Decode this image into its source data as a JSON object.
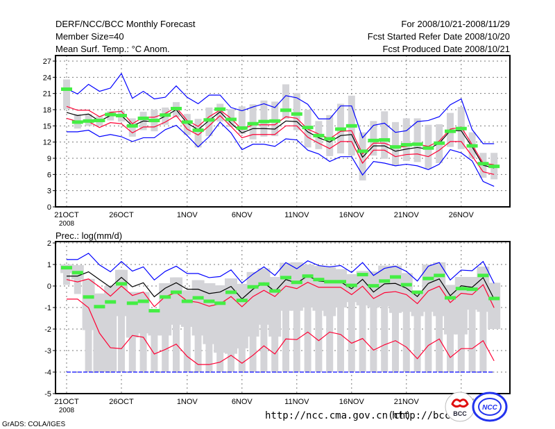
{
  "header": {
    "title": "DERF/NCC/BCC Monthly Forecast",
    "member_size": "Member Size=40",
    "variable": "Mean Surf. Temp.: °C Anom.",
    "period": "For 2008/10/21-2008/11/29",
    "started": "Fcst Started Refer Date 2008/10/20",
    "produced": "Fcst Produced Date 2008/10/21"
  },
  "footer": {
    "url_ncc": "http://ncc.cma.gov.cn(ch)",
    "url_bcc": "http://bcc.",
    "grads": "GrADS: COLA/IGES",
    "logo_bcc": "BCC",
    "logo_ncc": "NCC"
  },
  "colors": {
    "blue": "#0000ff",
    "red": "#ff0033",
    "black": "#000000",
    "green": "#44ee44",
    "bar": "#d4d4d8"
  },
  "chart_data": [
    {
      "type": "line",
      "title": "Mean Surf. Temp.",
      "ylim": [
        0,
        27
      ],
      "yticks": [
        "0",
        "3",
        "6",
        "9",
        "12",
        "15",
        "18",
        "21",
        "24",
        "27"
      ],
      "xticks": [
        {
          "day": 0,
          "label": "21OCT",
          "sub": "2008"
        },
        {
          "day": 5,
          "label": "26OCT"
        },
        {
          "day": 11,
          "label": "1NOV"
        },
        {
          "day": 16,
          "label": "6NOV"
        },
        {
          "day": 21,
          "label": "11NOV"
        },
        {
          "day": 26,
          "label": "16NOV"
        },
        {
          "day": 31,
          "label": "21NOV"
        },
        {
          "day": 36,
          "label": "26NOV"
        }
      ],
      "grid": true,
      "series": [
        {
          "name": "max",
          "color": "blue",
          "values": [
            21.9,
            20.9,
            22.7,
            21.4,
            22.0,
            24.7,
            20.1,
            21.4,
            20.0,
            20.3,
            22.4,
            20.3,
            19.1,
            20.7,
            20.7,
            18.4,
            17.8,
            18.5,
            19.1,
            18.4,
            20.6,
            20.2,
            19.0,
            16.3,
            16.3,
            18.7,
            18.7,
            12.8,
            15.1,
            15.5,
            13.8,
            14.1,
            15.8,
            16.0,
            16.7,
            18.9,
            20.0,
            14.3,
            11.7,
            11.7
          ]
        },
        {
          "name": "min",
          "color": "blue",
          "values": [
            13.9,
            13.9,
            14.2,
            13.0,
            13.4,
            13.0,
            12.1,
            12.8,
            12.8,
            14.3,
            15.1,
            13.2,
            11.1,
            13.0,
            15.7,
            13.7,
            10.6,
            11.6,
            11.6,
            11.2,
            12.6,
            12.4,
            10.5,
            9.8,
            8.4,
            9.3,
            9.3,
            5.9,
            8.4,
            8.1,
            7.6,
            7.9,
            7.6,
            6.9,
            7.9,
            10.6,
            10.0,
            8.5,
            4.7,
            3.8
          ]
        },
        {
          "name": "upper",
          "color": "red",
          "values": [
            18.6,
            17.9,
            17.9,
            16.7,
            17.5,
            17.7,
            15.4,
            16.6,
            16.6,
            17.3,
            18.4,
            16.0,
            14.9,
            16.7,
            17.9,
            16.4,
            14.3,
            15.2,
            15.2,
            15.2,
            16.7,
            16.4,
            14.4,
            13.5,
            12.6,
            14.0,
            14.1,
            9.8,
            11.8,
            11.8,
            11.0,
            11.2,
            11.6,
            11.2,
            12.2,
            14.4,
            14.8,
            11.5,
            8.1,
            7.8
          ]
        },
        {
          "name": "lower",
          "color": "red",
          "values": [
            16.4,
            15.8,
            15.8,
            14.7,
            15.6,
            15.4,
            13.7,
            14.8,
            14.8,
            15.7,
            16.9,
            14.4,
            13.3,
            15.0,
            16.9,
            14.9,
            12.8,
            13.4,
            13.4,
            13.4,
            15.0,
            15.0,
            12.9,
            11.8,
            10.8,
            12.1,
            12.1,
            8.1,
            10.5,
            10.5,
            9.3,
            9.7,
            9.8,
            9.3,
            10.5,
            12.1,
            12.1,
            9.4,
            6.5,
            6.0
          ]
        },
        {
          "name": "ensemble-mean",
          "color": "black",
          "values": [
            17.5,
            16.9,
            17.2,
            15.9,
            16.9,
            16.9,
            15.0,
            15.9,
            15.8,
            16.8,
            18.0,
            15.5,
            14.3,
            16.0,
            17.6,
            15.5,
            13.7,
            14.5,
            14.5,
            14.4,
            15.9,
            15.8,
            13.9,
            12.8,
            12.0,
            13.2,
            13.4,
            9.2,
            11.3,
            11.3,
            10.3,
            10.7,
            11.0,
            10.7,
            11.8,
            14.1,
            14.1,
            11.1,
            7.7,
            7.2
          ]
        }
      ],
      "markers": {
        "name": "green-mark",
        "color": "green",
        "values": [
          21.8,
          15.7,
          15.9,
          16.0,
          17.1,
          16.9,
          15.0,
          16.4,
          16.0,
          17.0,
          18.2,
          15.7,
          14.2,
          16.1,
          18.1,
          16.2,
          14.6,
          15.4,
          15.8,
          15.9,
          17.9,
          17.2,
          14.7,
          13.2,
          12.6,
          14.4,
          15.0,
          10.3,
          12.3,
          12.4,
          11.1,
          11.5,
          11.6,
          10.9,
          11.8,
          14.0,
          14.5,
          11.3,
          8.0,
          7.5
        ]
      },
      "bars": {
        "low": [
          18.1,
          14.5,
          15.0,
          15.0,
          16.0,
          15.8,
          13.0,
          14.2,
          14.0,
          15.2,
          16.6,
          13.3,
          11.0,
          13.1,
          15.8,
          14.8,
          13.5,
          12.5,
          13.0,
          13.1,
          16.3,
          14.2,
          11.0,
          10.7,
          9.4,
          9.9,
          9.5,
          4.9,
          9.5,
          8.9,
          7.6,
          8.5,
          8.3,
          7.1,
          8.1,
          11.1,
          10.7,
          9.0,
          5.4,
          5.1
        ],
        "high": [
          23.6,
          17.2,
          17.2,
          16.8,
          17.7,
          17.8,
          16.4,
          17.6,
          18.0,
          18.4,
          19.4,
          17.2,
          16.3,
          18.4,
          19.1,
          18.1,
          18.6,
          19.0,
          19.7,
          19.5,
          22.7,
          21.1,
          18.0,
          15.9,
          17.0,
          19.1,
          20.6,
          13.8,
          15.9,
          17.7,
          15.7,
          16.4,
          16.4,
          15.2,
          15.3,
          17.4,
          18.5,
          13.8,
          10.0,
          10.0
        ]
      }
    },
    {
      "type": "line",
      "title": "Prec.: log(mm/d)",
      "ylim": [
        -5,
        2
      ],
      "yticks": [
        "-5",
        "-4",
        "-3",
        "-2",
        "-1",
        "0",
        "1",
        "2"
      ],
      "xticks": [
        {
          "day": 0,
          "label": "21OCT",
          "sub": "2008"
        },
        {
          "day": 5,
          "label": "26OCT"
        },
        {
          "day": 11,
          "label": "1NOV"
        },
        {
          "day": 16,
          "label": "6NOV"
        },
        {
          "day": 21,
          "label": "11NOV"
        },
        {
          "day": 26,
          "label": "16NOV"
        },
        {
          "day": 31,
          "label": "21NOV"
        },
        {
          "day": 36,
          "label": "26NOV"
        }
      ],
      "grid": true,
      "series": [
        {
          "name": "max",
          "color": "blue",
          "values": [
            1.23,
            1.23,
            1.52,
            0.98,
            0.66,
            1.14,
            0.69,
            0.89,
            0.28,
            0.68,
            0.92,
            0.58,
            0.58,
            0.39,
            0.44,
            0.75,
            0.14,
            0.55,
            0.89,
            0.49,
            1.09,
            0.8,
            1.17,
            0.95,
            0.89,
            0.95,
            0.63,
            1.09,
            0.49,
            0.82,
            0.92,
            0.68,
            0.23,
            0.92,
            1.09,
            0.28,
            0.74,
            0.71,
            1.14,
            0.12
          ]
        },
        {
          "name": "min",
          "color": "blue",
          "values": [
            -4,
            -4,
            -4,
            -4,
            -4,
            -4,
            -4,
            -4,
            -4,
            -4,
            -4,
            -4,
            -4,
            -4,
            -4,
            -4,
            -4,
            -4,
            -4,
            -4,
            -4,
            -4,
            -4,
            -4,
            -4,
            -4,
            -4,
            -4,
            -4,
            -4,
            -4,
            -4,
            -4,
            -4,
            -4,
            -4,
            -4,
            -4,
            -4,
            -4
          ]
        },
        {
          "name": "upper",
          "color": "red",
          "values": [
            0.3,
            0.19,
            0.33,
            -0.04,
            -0.47,
            0,
            -0.44,
            -0.28,
            -0.96,
            -0.49,
            -0.31,
            -0.69,
            -0.76,
            -0.94,
            -0.83,
            -0.49,
            -0.96,
            -0.49,
            -0.2,
            -0.49,
            0,
            -0.12,
            0.17,
            -0.06,
            -0.06,
            -0.06,
            -0.4,
            -0.01,
            -0.58,
            -0.31,
            -0.26,
            -0.4,
            -0.82,
            -0.23,
            -0.01,
            -0.77,
            -0.34,
            -0.4,
            0.06,
            -1.01
          ]
        },
        {
          "name": "lower",
          "color": "red",
          "values": [
            -0.61,
            -0.61,
            -1.01,
            -2.19,
            -2.87,
            -2.91,
            -2.3,
            -2.38,
            -3.16,
            -2.95,
            -2.7,
            -3.27,
            -3.65,
            -3.65,
            -3.54,
            -3.22,
            -3.59,
            -3.22,
            -2.78,
            -3.16,
            -2.46,
            -2.49,
            -2.14,
            -2.54,
            -2.14,
            -2.25,
            -2.66,
            -2.44,
            -2.98,
            -2.73,
            -2.54,
            -2.84,
            -3.38,
            -2.76,
            -2.46,
            -3.32,
            -2.91,
            -2.91,
            -2.54,
            -3.48
          ]
        },
        {
          "name": "ensemble-mean",
          "color": "black",
          "values": [
            0.46,
            0.46,
            0.66,
            0.3,
            -0.06,
            0.4,
            -0.04,
            0.15,
            -0.5,
            -0.1,
            0.15,
            -0.15,
            -0.15,
            -0.35,
            -0.28,
            -0.02,
            -0.6,
            -0.15,
            0.15,
            -0.25,
            0.3,
            0.14,
            0.47,
            0.23,
            0.19,
            0.19,
            -0.13,
            0.31,
            -0.28,
            0.1,
            0.12,
            -0.1,
            -0.49,
            0.12,
            0.33,
            -0.45,
            0.01,
            -0.06,
            0.39,
            -0.6
          ]
        }
      ],
      "markers": {
        "name": "green-mark",
        "color": "green",
        "values": [
          0.85,
          0.62,
          -0.51,
          -0.96,
          -0.74,
          0.1,
          -0.8,
          -0.71,
          -1.15,
          -0.51,
          -0.29,
          -0.71,
          -0.55,
          -0.71,
          -0.8,
          -0.29,
          -0.67,
          -0.04,
          0.09,
          -0.23,
          0.39,
          0.17,
          0.46,
          0.3,
          0.2,
          0.2,
          0.03,
          0.53,
          0.01,
          0.23,
          0.42,
          0.06,
          -0.29,
          0.35,
          0.49,
          -0.55,
          -0.12,
          -0.15,
          0.49,
          -0.58
        ]
      },
      "bars": {
        "low": [
          0.05,
          -0.37,
          -4,
          -4,
          -4,
          -4,
          -4,
          -4,
          -4,
          -4,
          -4,
          -4,
          -4,
          -4,
          -4,
          -4,
          -4,
          -4,
          -4,
          -4,
          -4,
          -4,
          -4,
          -4,
          -4,
          -4,
          -4,
          -4,
          -4,
          -4,
          -4,
          -4,
          -4,
          -4,
          -4,
          -4,
          -4,
          -4,
          -4,
          -2.0
        ],
        "box_low": [
          0.6,
          0.3,
          -2.05,
          -4,
          -4,
          -1.4,
          -2.4,
          -2.2,
          -2.3,
          -2.3,
          -1.8,
          -1.9,
          -2.3,
          -2.7,
          -3.1,
          -3.15,
          -2.9,
          -2.35,
          -1.8,
          -2.35,
          -1.15,
          -1.15,
          -1.0,
          -1.15,
          -1.4,
          -1.0,
          -0.75,
          -0.9,
          -1.0,
          -0.95,
          -1.25,
          -1.2,
          -1.4,
          -1.2,
          -1.4,
          -2.25,
          -2.25,
          -1.1,
          -1.2,
          -2.0
        ],
        "high": [
          1.0,
          0.97,
          0.33,
          -0.35,
          0.0,
          0.75,
          -0.28,
          -0.28,
          -1.1,
          0.13,
          0.4,
          -0.2,
          0.27,
          0.13,
          0.03,
          0.35,
          0.1,
          0.65,
          0.82,
          0.42,
          1.08,
          1.1,
          1.0,
          0.93,
          0.88,
          0.78,
          0.55,
          0.7,
          0.67,
          0.95,
          0.95,
          0.6,
          -0.29,
          1.0,
          1.1,
          0.05,
          0.42,
          0.42,
          0.9,
          0.15
        ]
      }
    }
  ]
}
